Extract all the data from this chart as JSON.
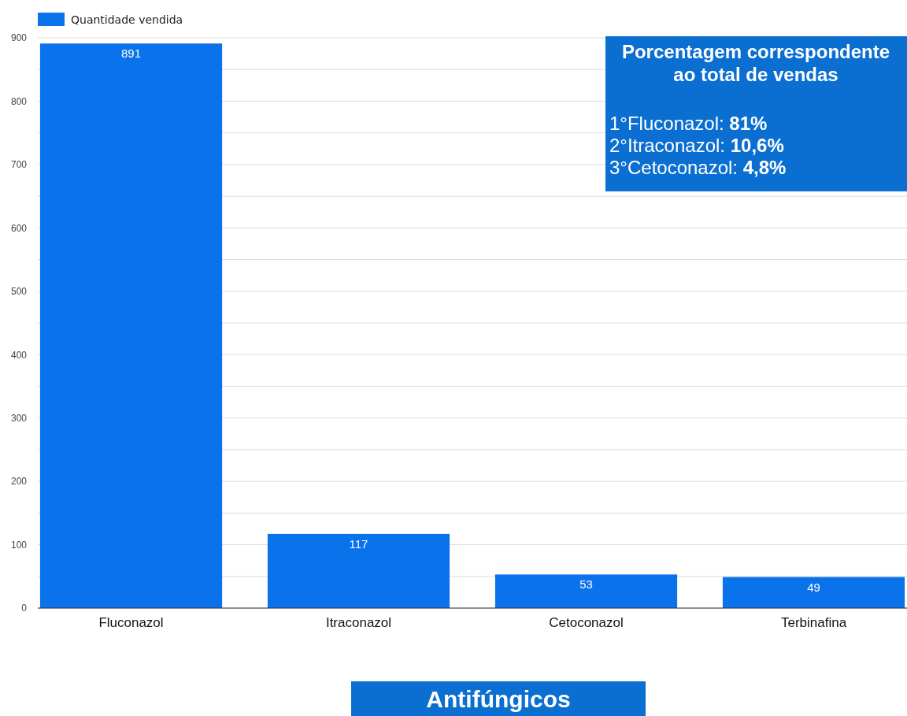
{
  "chart_data": {
    "type": "bar",
    "xlabel": "Antifúngicos",
    "categories": [
      "Fluconazol",
      "Itraconazol",
      "Cetoconazol",
      "Terbinafina"
    ],
    "series": [
      {
        "name": "Quantidade vendida",
        "color": "#0a72eb",
        "values": [
          891,
          117,
          53,
          49
        ]
      }
    ],
    "ylim": [
      0,
      900
    ],
    "yticks": [
      0,
      {
        "value": 50,
        "label": null
      },
      100,
      {
        "value": 150,
        "label": null
      },
      200,
      {
        "value": 250,
        "label": null
      },
      300,
      {
        "value": 350,
        "label": null
      },
      400,
      {
        "value": 450,
        "label": null
      },
      500,
      {
        "value": 550,
        "label": null
      },
      600,
      {
        "value": 650,
        "label": null
      },
      700,
      {
        "value": 750,
        "label": null
      },
      800,
      {
        "value": 850,
        "label": null
      },
      900
    ],
    "grid": "y",
    "legend": "top left",
    "data_labels": true,
    "annotations": [
      "Porcentagem correspondente ao total de vendas",
      "1°Fluconazol: 81%",
      "2°Itraconazol: 10,6%",
      "3°Cetoconazol: 4,8%"
    ]
  }
}
